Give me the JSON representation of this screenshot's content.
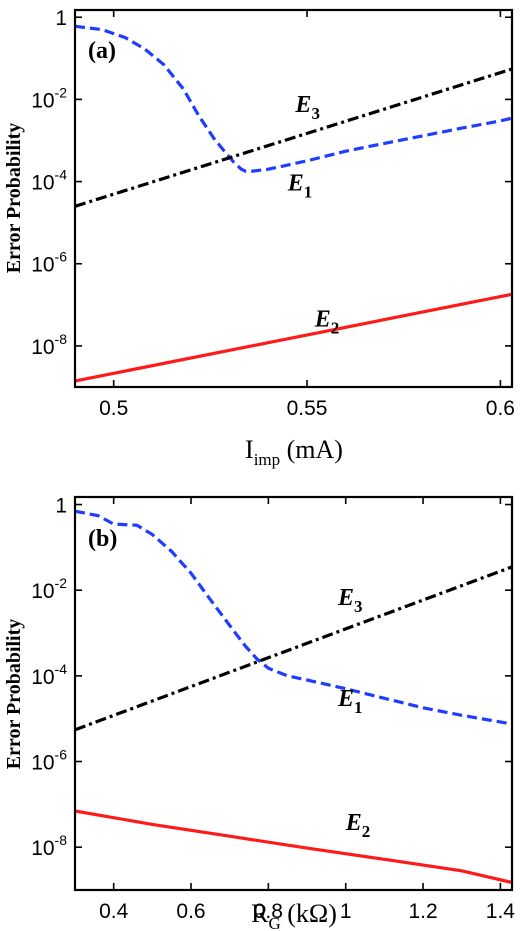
{
  "chart_data": [
    {
      "type": "line",
      "panel": "(a)",
      "xlabel_main": "I",
      "xlabel_sub": "imp",
      "xlabel_unit": " (mA)",
      "ylabel": "Error Probability",
      "y_scale": "log",
      "xlim": [
        0.49,
        0.603
      ],
      "ylim": [
        1e-09,
        1.5
      ],
      "x_ticks": [
        0.5,
        0.55,
        0.6
      ],
      "x_tick_labels": [
        "0.5",
        "0.55",
        "0.6"
      ],
      "y_ticks": [
        1e-08,
        1e-06,
        0.0001,
        0.01,
        1
      ],
      "y_tick_labels": [
        {
          "base": "10",
          "exp": "-8"
        },
        {
          "base": "10",
          "exp": "-6"
        },
        {
          "base": "10",
          "exp": "-4"
        },
        {
          "base": "10",
          "exp": "-2"
        },
        {
          "base": "1",
          "exp": ""
        }
      ],
      "series": [
        {
          "name": "E1",
          "label_letter": "E",
          "label_sub": "1",
          "color": "#1f3cff",
          "style": "dashed",
          "label_pos": [
            0.545,
            6e-05
          ],
          "x": [
            0.49,
            0.497,
            0.503,
            0.508,
            0.513,
            0.518,
            0.522,
            0.526,
            0.529,
            0.531,
            0.533,
            0.534,
            0.536,
            0.54,
            0.55,
            0.56,
            0.57,
            0.58,
            0.59,
            0.6,
            0.603
          ],
          "y": [
            0.6,
            0.5,
            0.32,
            0.17,
            0.07,
            0.018,
            0.004,
            0.0011,
            0.0005,
            0.0003,
            0.0002,
            0.00018,
            0.00018,
            0.0002,
            0.00032,
            0.00055,
            0.00085,
            0.0013,
            0.002,
            0.003,
            0.0035
          ]
        },
        {
          "name": "E2",
          "label_letter": "E",
          "label_sub": "2",
          "color": "#ff1a1a",
          "style": "solid",
          "label_pos": [
            0.552,
            3e-08
          ],
          "x": [
            0.49,
            0.603
          ],
          "y": [
            1.4e-09,
            1.8e-07
          ]
        },
        {
          "name": "E3",
          "label_letter": "E",
          "label_sub": "3",
          "color": "#000000",
          "style": "dashdot",
          "label_pos": [
            0.547,
            0.005
          ],
          "x": [
            0.49,
            0.603
          ],
          "y": [
            2.5e-05,
            0.055
          ]
        }
      ]
    },
    {
      "type": "line",
      "panel": "(b)",
      "xlabel_main": "R",
      "xlabel_sub": "G",
      "xlabel_unit": " (kΩ)",
      "ylabel": "Error Probability",
      "y_scale": "log",
      "xlim": [
        0.3,
        1.43
      ],
      "ylim": [
        1e-09,
        1.5
      ],
      "x_ticks": [
        0.4,
        0.6,
        0.8,
        1.0,
        1.2,
        1.4
      ],
      "x_tick_labels": [
        "0.4",
        "0.6",
        "0.8",
        "1",
        "1.2",
        "1.4"
      ],
      "y_ticks": [
        1e-08,
        1e-06,
        0.0001,
        0.01,
        1
      ],
      "y_tick_labels": [
        {
          "base": "10",
          "exp": "-8"
        },
        {
          "base": "10",
          "exp": "-6"
        },
        {
          "base": "10",
          "exp": "-4"
        },
        {
          "base": "10",
          "exp": "-2"
        },
        {
          "base": "1",
          "exp": ""
        }
      ],
      "series": [
        {
          "name": "E1",
          "label_letter": "E",
          "label_sub": "1",
          "color": "#1f3cff",
          "style": "dashed",
          "label_pos": [
            0.98,
            2e-05
          ],
          "x": [
            0.3,
            0.36,
            0.4,
            0.46,
            0.5,
            0.55,
            0.6,
            0.65,
            0.7,
            0.74,
            0.77,
            0.8,
            0.85,
            0.9,
            1.0,
            1.1,
            1.2,
            1.3,
            1.43
          ],
          "y": [
            0.7,
            0.55,
            0.35,
            0.33,
            0.2,
            0.08,
            0.025,
            0.006,
            0.0015,
            0.0005,
            0.00025,
            0.00015,
            0.0001,
            8e-05,
            5e-05,
            3e-05,
            1.8e-05,
            1.2e-05,
            7.5e-06
          ]
        },
        {
          "name": "E2",
          "label_letter": "E",
          "label_sub": "2",
          "color": "#ff1a1a",
          "style": "solid",
          "label_pos": [
            1.0,
            2.5e-08
          ],
          "x": [
            0.3,
            0.5,
            0.7,
            0.9,
            1.1,
            1.3,
            1.43
          ],
          "y": [
            7e-08,
            3.4e-08,
            1.8e-08,
            9.5e-09,
            5.2e-09,
            2.8e-09,
            1.5e-09
          ]
        },
        {
          "name": "E3",
          "label_letter": "E",
          "label_sub": "3",
          "color": "#000000",
          "style": "dashdot",
          "label_pos": [
            0.98,
            0.0045
          ],
          "x": [
            0.3,
            1.43
          ],
          "y": [
            5.5e-06,
            0.035
          ]
        }
      ]
    }
  ]
}
